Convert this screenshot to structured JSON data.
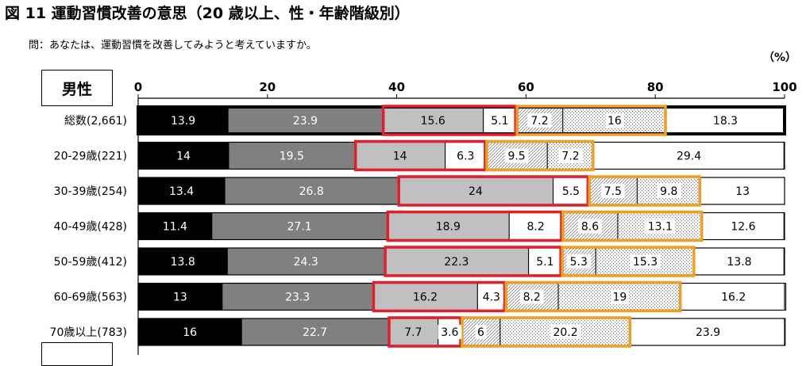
{
  "title": "図 11  運動習慣改善の意思（20 歳以上、性・年齢階級別）",
  "question": "問：あなたは、運動習慣を改善してみようと考えていますか。",
  "unit": "（%）",
  "group_label": "男性",
  "colors": {
    "fills": [
      "#000000",
      "#808080",
      "#c0c0c0",
      "#ffffff",
      "#e6e6e6",
      "#e6e6e6",
      "#ffffff"
    ],
    "highlight_red": "#e0202e",
    "highlight_orange": "#f0a020"
  },
  "chart_data": {
    "type": "bar",
    "orientation": "horizontal",
    "stacked": true,
    "xlim": [
      0,
      100
    ],
    "x_ticks": [
      0,
      20,
      40,
      60,
      80,
      100
    ],
    "categories": [
      "総数(2,661)",
      "20-29歳(221)",
      "30-39歳(254)",
      "40-49歳(428)",
      "50-59歳(412)",
      "60-69歳(563)",
      "70歳以上(783)"
    ],
    "series": [
      {
        "values": [
          13.9,
          14.0,
          13.4,
          11.4,
          13.8,
          13.0,
          16.0
        ]
      },
      {
        "values": [
          23.9,
          19.5,
          26.8,
          27.1,
          24.3,
          23.3,
          22.7
        ]
      },
      {
        "values": [
          15.6,
          14.0,
          24.0,
          18.9,
          22.3,
          16.2,
          7.7
        ]
      },
      {
        "values": [
          5.1,
          6.3,
          5.5,
          8.2,
          5.1,
          4.3,
          3.6
        ]
      },
      {
        "values": [
          7.2,
          9.5,
          7.5,
          8.6,
          5.3,
          8.2,
          6.0
        ]
      },
      {
        "values": [
          16.0,
          7.2,
          9.8,
          13.1,
          15.3,
          19.0,
          20.2
        ]
      },
      {
        "values": [
          18.3,
          29.4,
          13.0,
          12.6,
          13.8,
          16.2,
          23.9
        ]
      }
    ]
  }
}
